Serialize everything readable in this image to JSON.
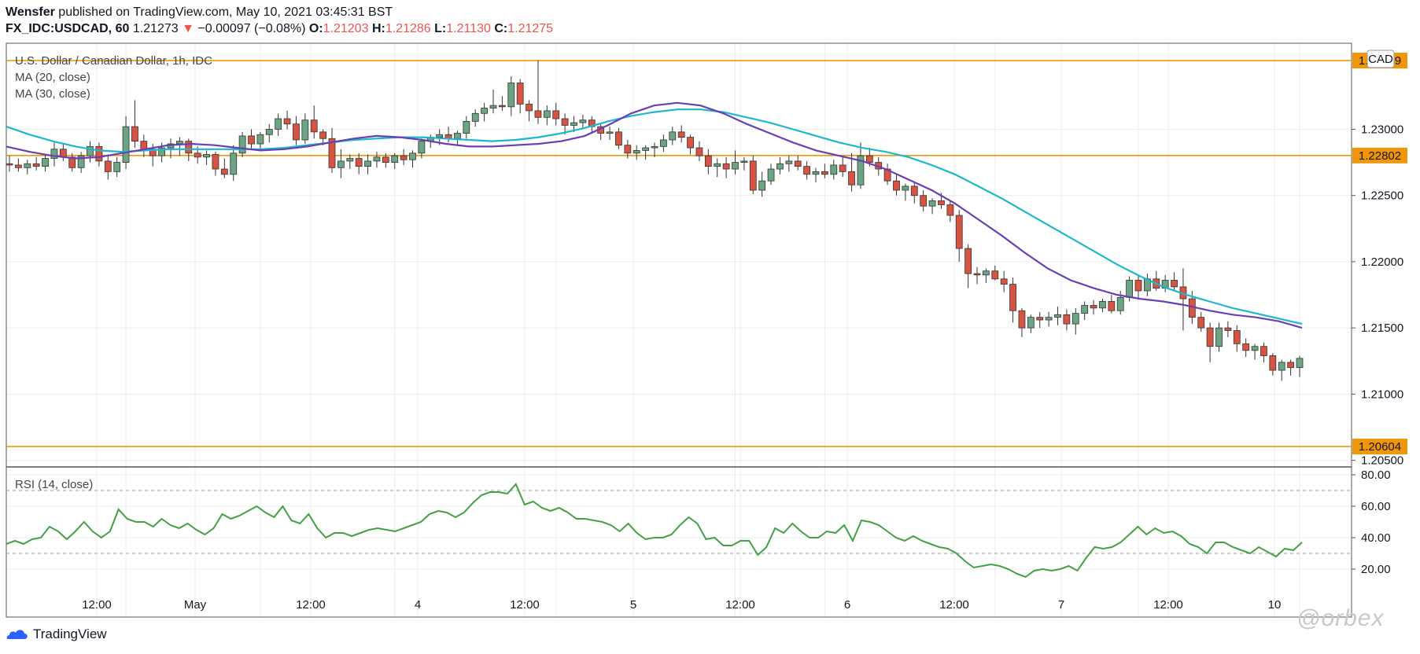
{
  "header": {
    "publisher": "Wensfer",
    "published_text": "published on TradingView.com, May 10, 2021 03:45:31 BST",
    "symbol": "FX_IDC:USDCAD, 60",
    "last": "1.21273",
    "change_arrow": "▼",
    "change": "−0.00097 (−0.08%)",
    "o_label": "O:",
    "o_val": "1.21203",
    "h_label": "H:",
    "h_val": "1.21286",
    "l_label": "L:",
    "l_val": "1.21130",
    "c_label": "C:",
    "c_val": "1.21275"
  },
  "legend": {
    "title": "U.S. Dollar / Canadian Dollar, 1h, IDC",
    "ma20": "MA (20, close)",
    "ma30": "MA (30, close)",
    "rsi": "RSI (14, close)",
    "currency_badge": "CAD"
  },
  "colors": {
    "up": "#6ba583",
    "down": "#d75442",
    "ma20": "#6a3fb5",
    "ma30": "#1cb8cc",
    "level": "#f0960a",
    "rsi": "#43a047"
  },
  "footer": {
    "brand": "TradingView",
    "watermark": "@orbex"
  },
  "chart_data": [
    {
      "type": "candlestick",
      "title": "U.S. Dollar / Canadian Dollar, 1h, IDC",
      "ylim": [
        1.2045,
        1.2365
      ],
      "y_ticks": [
        "1.23000",
        "1.22500",
        "1.22000",
        "1.21500",
        "1.21000",
        "1.20500"
      ],
      "x_ticks": [
        "12:00",
        "May",
        "12:00",
        "4",
        "12:00",
        "5",
        "12:00",
        "6",
        "12:00",
        "7",
        "12:00",
        "10"
      ],
      "levels": [
        {
          "label": "1.23519",
          "value": 1.23519
        },
        {
          "label": "1.22802",
          "value": 1.22802
        },
        {
          "label": "1.20604",
          "value": 1.20604
        }
      ],
      "candles": [
        [
          1.2274,
          1.228,
          1.2268,
          1.2273
        ],
        [
          1.2273,
          1.2278,
          1.2268,
          1.2271
        ],
        [
          1.2271,
          1.2277,
          1.2266,
          1.2274
        ],
        [
          1.2274,
          1.2279,
          1.2269,
          1.2272
        ],
        [
          1.2272,
          1.2281,
          1.2268,
          1.2278
        ],
        [
          1.2278,
          1.229,
          1.2272,
          1.2285
        ],
        [
          1.2285,
          1.2289,
          1.2276,
          1.2279
        ],
        [
          1.2279,
          1.2282,
          1.2268,
          1.2271
        ],
        [
          1.2271,
          1.2283,
          1.2267,
          1.228
        ],
        [
          1.228,
          1.2291,
          1.2275,
          1.2287
        ],
        [
          1.2287,
          1.229,
          1.2272,
          1.2276
        ],
        [
          1.2276,
          1.2281,
          1.2262,
          1.2268
        ],
        [
          1.2268,
          1.2279,
          1.2264,
          1.2275
        ],
        [
          1.2275,
          1.231,
          1.227,
          1.2302
        ],
        [
          1.2302,
          1.2322,
          1.2286,
          1.2291
        ],
        [
          1.2291,
          1.2296,
          1.2279,
          1.2285
        ],
        [
          1.2285,
          1.2289,
          1.2272,
          1.228
        ],
        [
          1.228,
          1.229,
          1.2275,
          1.2286
        ],
        [
          1.2286,
          1.2293,
          1.2278,
          1.2289
        ],
        [
          1.2289,
          1.2294,
          1.228,
          1.2291
        ],
        [
          1.2291,
          1.2293,
          1.2276,
          1.2282
        ],
        [
          1.2282,
          1.2287,
          1.2274,
          1.2279
        ],
        [
          1.2279,
          1.2284,
          1.2273,
          1.2281
        ],
        [
          1.2281,
          1.2283,
          1.2265,
          1.227
        ],
        [
          1.227,
          1.2278,
          1.2263,
          1.2266
        ],
        [
          1.2266,
          1.2288,
          1.2261,
          1.2282
        ],
        [
          1.2282,
          1.2298,
          1.2279,
          1.2295
        ],
        [
          1.2295,
          1.23,
          1.2285,
          1.2289
        ],
        [
          1.2289,
          1.2298,
          1.2284,
          1.2296
        ],
        [
          1.2296,
          1.2304,
          1.229,
          1.23
        ],
        [
          1.23,
          1.2312,
          1.2295,
          1.2308
        ],
        [
          1.2308,
          1.2314,
          1.23,
          1.2304
        ],
        [
          1.2304,
          1.231,
          1.2288,
          1.2292
        ],
        [
          1.2292,
          1.2312,
          1.2289,
          1.2307
        ],
        [
          1.2307,
          1.2318,
          1.2293,
          1.2298
        ],
        [
          1.2298,
          1.23,
          1.2288,
          1.2293
        ],
        [
          1.2293,
          1.2301,
          1.2267,
          1.2271
        ],
        [
          1.2271,
          1.2285,
          1.2263,
          1.2276
        ],
        [
          1.2276,
          1.2281,
          1.227,
          1.2278
        ],
        [
          1.2278,
          1.2282,
          1.2266,
          1.2272
        ],
        [
          1.2272,
          1.2281,
          1.2266,
          1.2276
        ],
        [
          1.2276,
          1.2283,
          1.2271,
          1.2279
        ],
        [
          1.2279,
          1.2282,
          1.2271,
          1.2275
        ],
        [
          1.2275,
          1.2282,
          1.227,
          1.228
        ],
        [
          1.228,
          1.2285,
          1.2273,
          1.2277
        ],
        [
          1.2277,
          1.2284,
          1.2271,
          1.2282
        ],
        [
          1.2282,
          1.2293,
          1.2278,
          1.2291
        ],
        [
          1.2291,
          1.2296,
          1.2286,
          1.2294
        ],
        [
          1.2294,
          1.23,
          1.2288,
          1.2296
        ],
        [
          1.2296,
          1.2302,
          1.229,
          1.2293
        ],
        [
          1.2293,
          1.2299,
          1.2288,
          1.2297
        ],
        [
          1.2297,
          1.231,
          1.2293,
          1.2306
        ],
        [
          1.2306,
          1.2315,
          1.2302,
          1.2312
        ],
        [
          1.2312,
          1.232,
          1.2306,
          1.2316
        ],
        [
          1.2316,
          1.233,
          1.2312,
          1.2318
        ],
        [
          1.2318,
          1.2325,
          1.2314,
          1.2317
        ],
        [
          1.2317,
          1.234,
          1.231,
          1.2335
        ],
        [
          1.2335,
          1.2338,
          1.2312,
          1.2319
        ],
        [
          1.2319,
          1.2322,
          1.2306,
          1.2314
        ],
        [
          1.2314,
          1.2352,
          1.2304,
          1.2309
        ],
        [
          1.2309,
          1.2318,
          1.2303,
          1.2314
        ],
        [
          1.2314,
          1.232,
          1.2303,
          1.2308
        ],
        [
          1.2308,
          1.2312,
          1.2296,
          1.2303
        ],
        [
          1.2303,
          1.231,
          1.2298,
          1.2305
        ],
        [
          1.2305,
          1.2311,
          1.23,
          1.2307
        ],
        [
          1.2307,
          1.231,
          1.2298,
          1.2302
        ],
        [
          1.2302,
          1.2304,
          1.2292,
          1.2297
        ],
        [
          1.2297,
          1.2302,
          1.2292,
          1.2298
        ],
        [
          1.2298,
          1.2301,
          1.2285,
          1.2288
        ],
        [
          1.2288,
          1.2292,
          1.2278,
          1.2282
        ],
        [
          1.2282,
          1.2288,
          1.2277,
          1.2284
        ],
        [
          1.2284,
          1.2288,
          1.2277,
          1.2286
        ],
        [
          1.2286,
          1.229,
          1.2279,
          1.2287
        ],
        [
          1.2287,
          1.2296,
          1.2283,
          1.2292
        ],
        [
          1.2292,
          1.2302,
          1.2288,
          1.2298
        ],
        [
          1.2298,
          1.2303,
          1.229,
          1.2294
        ],
        [
          1.2294,
          1.2296,
          1.2281,
          1.2286
        ],
        [
          1.2286,
          1.2291,
          1.2276,
          1.228
        ],
        [
          1.228,
          1.2285,
          1.2266,
          1.2272
        ],
        [
          1.2272,
          1.2278,
          1.2264,
          1.2274
        ],
        [
          1.2274,
          1.2279,
          1.2263,
          1.227
        ],
        [
          1.227,
          1.2284,
          1.2266,
          1.2275
        ],
        [
          1.2275,
          1.2279,
          1.2269,
          1.2276
        ],
        [
          1.2276,
          1.228,
          1.2251,
          1.2254
        ],
        [
          1.2254,
          1.2268,
          1.2249,
          1.2261
        ],
        [
          1.2261,
          1.2274,
          1.2258,
          1.227
        ],
        [
          1.227,
          1.2279,
          1.2266,
          1.2274
        ],
        [
          1.2274,
          1.228,
          1.2268,
          1.2276
        ],
        [
          1.2276,
          1.228,
          1.2269,
          1.2272
        ],
        [
          1.2272,
          1.2276,
          1.2262,
          1.2266
        ],
        [
          1.2266,
          1.2271,
          1.226,
          1.2268
        ],
        [
          1.2268,
          1.2274,
          1.2263,
          1.2266
        ],
        [
          1.2266,
          1.2277,
          1.2262,
          1.2273
        ],
        [
          1.2273,
          1.228,
          1.2264,
          1.2268
        ],
        [
          1.2268,
          1.2282,
          1.2253,
          1.2258
        ],
        [
          1.2258,
          1.229,
          1.2255,
          1.228
        ],
        [
          1.228,
          1.2286,
          1.2272,
          1.2275
        ],
        [
          1.2275,
          1.2279,
          1.2265,
          1.227
        ],
        [
          1.227,
          1.2274,
          1.2258,
          1.2261
        ],
        [
          1.2261,
          1.2266,
          1.225,
          1.2254
        ],
        [
          1.2254,
          1.2259,
          1.2246,
          1.2257
        ],
        [
          1.2257,
          1.226,
          1.2244,
          1.225
        ],
        [
          1.225,
          1.2254,
          1.2238,
          1.2242
        ],
        [
          1.2242,
          1.2248,
          1.2236,
          1.2246
        ],
        [
          1.2246,
          1.2252,
          1.224,
          1.2243
        ],
        [
          1.2243,
          1.2246,
          1.223,
          1.2235
        ],
        [
          1.2235,
          1.2239,
          1.22,
          1.221
        ],
        [
          1.221,
          1.2213,
          1.218,
          1.2191
        ],
        [
          1.2191,
          1.2196,
          1.2183,
          1.219
        ],
        [
          1.219,
          1.2195,
          1.2184,
          1.2193
        ],
        [
          1.2193,
          1.2197,
          1.2186,
          1.2187
        ],
        [
          1.2187,
          1.2193,
          1.2177,
          1.2183
        ],
        [
          1.2183,
          1.2188,
          1.2154,
          1.2163
        ],
        [
          1.2163,
          1.2165,
          1.2143,
          1.215
        ],
        [
          1.215,
          1.216,
          1.2146,
          1.2158
        ],
        [
          1.2158,
          1.2162,
          1.215,
          1.2156
        ],
        [
          1.2156,
          1.2162,
          1.2151,
          1.2158
        ],
        [
          1.2158,
          1.2166,
          1.2152,
          1.216
        ],
        [
          1.216,
          1.2164,
          1.2148,
          1.2153
        ],
        [
          1.2153,
          1.2165,
          1.2145,
          1.2161
        ],
        [
          1.2161,
          1.217,
          1.2156,
          1.2167
        ],
        [
          1.2167,
          1.2171,
          1.216,
          1.2165
        ],
        [
          1.2165,
          1.2172,
          1.2162,
          1.217
        ],
        [
          1.217,
          1.2175,
          1.2161,
          1.2163
        ],
        [
          1.2163,
          1.2178,
          1.216,
          1.2173
        ],
        [
          1.2173,
          1.2189,
          1.217,
          1.2186
        ],
        [
          1.2186,
          1.219,
          1.2172,
          1.2178
        ],
        [
          1.2178,
          1.2191,
          1.2174,
          1.2187
        ],
        [
          1.2187,
          1.2193,
          1.2178,
          1.218
        ],
        [
          1.218,
          1.219,
          1.2177,
          1.2186
        ],
        [
          1.2186,
          1.2192,
          1.2178,
          1.2181
        ],
        [
          1.2181,
          1.2195,
          1.2148,
          1.2172
        ],
        [
          1.2172,
          1.2178,
          1.2153,
          1.2158
        ],
        [
          1.2158,
          1.2162,
          1.2147,
          1.215
        ],
        [
          1.215,
          1.2154,
          1.2124,
          1.2136
        ],
        [
          1.2136,
          1.2154,
          1.2132,
          1.215
        ],
        [
          1.215,
          1.2155,
          1.2143,
          1.2148
        ],
        [
          1.2148,
          1.2152,
          1.2132,
          1.2138
        ],
        [
          1.2138,
          1.2142,
          1.2128,
          1.2133
        ],
        [
          1.2133,
          1.2138,
          1.2126,
          1.2136
        ],
        [
          1.2136,
          1.2139,
          1.2124,
          1.2129
        ],
        [
          1.2129,
          1.2131,
          1.2114,
          1.2118
        ],
        [
          1.2118,
          1.2126,
          1.211,
          1.2124
        ],
        [
          1.2124,
          1.2126,
          1.2114,
          1.212
        ],
        [
          1.212,
          1.2129,
          1.2113,
          1.2127
        ]
      ],
      "ma20": [
        1.2287,
        1.2283,
        1.228,
        1.2278,
        1.2279,
        1.2282,
        1.2285,
        1.2288,
        1.2289,
        1.2288,
        1.2286,
        1.2284,
        1.2285,
        1.2287,
        1.229,
        1.2293,
        1.2295,
        1.2294,
        1.2292,
        1.2289,
        1.2287,
        1.2287,
        1.2288,
        1.2289,
        1.2291,
        1.2295,
        1.2303,
        1.2312,
        1.2318,
        1.232,
        1.2318,
        1.2312,
        1.2304,
        1.2297,
        1.229,
        1.2284,
        1.228,
        1.2276,
        1.227,
        1.2262,
        1.2254,
        1.2244,
        1.2232,
        1.222,
        1.2207,
        1.2195,
        1.2186,
        1.218,
        1.2175,
        1.2172,
        1.217,
        1.2167,
        1.2163,
        1.216,
        1.2158,
        1.2155,
        1.215
      ],
      "ma30": [
        1.2302,
        1.2296,
        1.2291,
        1.2287,
        1.2284,
        1.2283,
        1.2284,
        1.2285,
        1.2285,
        1.2285,
        1.2285,
        1.2285,
        1.2286,
        1.2288,
        1.229,
        1.2292,
        1.2293,
        1.2294,
        1.2294,
        1.2293,
        1.2292,
        1.2291,
        1.2292,
        1.2294,
        1.2297,
        1.2301,
        1.2306,
        1.231,
        1.2313,
        1.2315,
        1.2315,
        1.2313,
        1.2309,
        1.2305,
        1.23,
        1.2295,
        1.229,
        1.2286,
        1.2283,
        1.2279,
        1.2273,
        1.2266,
        1.2257,
        1.2248,
        1.2238,
        1.2228,
        1.2218,
        1.2208,
        1.2198,
        1.2189,
        1.2181,
        1.2175,
        1.217,
        1.2165,
        1.2161,
        1.2157,
        1.2153
      ]
    },
    {
      "type": "line",
      "title": "RSI (14, close)",
      "ylim": [
        7,
        85
      ],
      "y_ticks": [
        "80.00",
        "60.00",
        "40.00",
        "20.00"
      ],
      "bands": [
        70,
        30
      ],
      "values": [
        36,
        38,
        36,
        39,
        40,
        47,
        44,
        39,
        44,
        50,
        44,
        40,
        44,
        58,
        52,
        50,
        50,
        47,
        52,
        48,
        46,
        49,
        45,
        42,
        46,
        55,
        52,
        54,
        57,
        60,
        56,
        53,
        60,
        51,
        49,
        55,
        46,
        40,
        43,
        43,
        41,
        43,
        45,
        46,
        45,
        44,
        46,
        48,
        50,
        55,
        57,
        56,
        53,
        56,
        62,
        67,
        69,
        69,
        68,
        74,
        61,
        63,
        59,
        57,
        59,
        56,
        52,
        52,
        51,
        50,
        48,
        44,
        49,
        43,
        39,
        40,
        40,
        42,
        48,
        53,
        49,
        39,
        40,
        35,
        35,
        38,
        38,
        29,
        34,
        46,
        43,
        49,
        44,
        40,
        40,
        44,
        43,
        48,
        38,
        51,
        50,
        48,
        44,
        40,
        38,
        41,
        38,
        36,
        34,
        33,
        30,
        25,
        21,
        22,
        23,
        22,
        20,
        17,
        15,
        19,
        20,
        19,
        20,
        22,
        19,
        27,
        34,
        33,
        34,
        37,
        42,
        47,
        42,
        46,
        43,
        44,
        41,
        36,
        34,
        30,
        37,
        37,
        34,
        32,
        30,
        34,
        31,
        28,
        33,
        32,
        37
      ]
    }
  ]
}
